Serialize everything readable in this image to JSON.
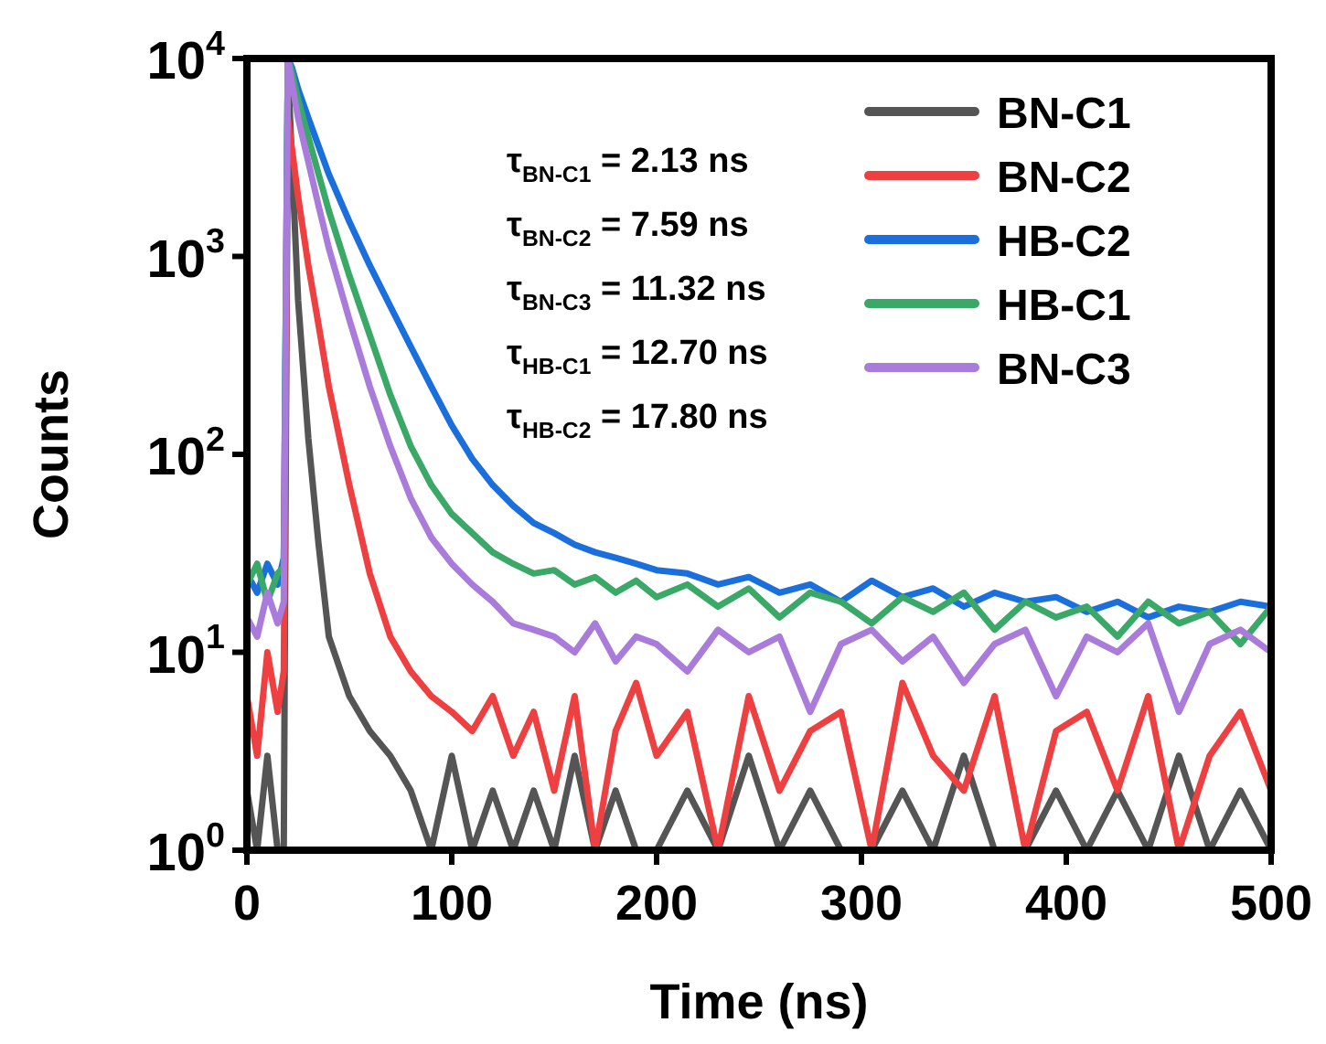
{
  "chart_data": {
    "type": "line",
    "xlabel": "Time (ns)",
    "ylabel": "Counts",
    "log": "y",
    "xlim": [
      0,
      500
    ],
    "xticks": [
      0,
      100,
      200,
      300,
      400,
      500
    ],
    "ylim": [
      1,
      10000
    ],
    "yticks": [
      {
        "value": 1,
        "label": "10$^{0}$"
      },
      {
        "value": 10,
        "label": "10$^{1}$"
      },
      {
        "value": 100,
        "label": "10$^{2}$"
      },
      {
        "value": 1000,
        "label": "10$^{3}$"
      },
      {
        "value": 10000,
        "label": "10$^{4}$"
      }
    ],
    "legend": "top right",
    "grid": false,
    "marker": "none",
    "line_style": "solid",
    "x": [
      0,
      5,
      10,
      15,
      18,
      20,
      22,
      25,
      30,
      35,
      40,
      50,
      60,
      70,
      80,
      90,
      100,
      110,
      120,
      130,
      140,
      150,
      160,
      170,
      180,
      190,
      200,
      215,
      230,
      245,
      260,
      275,
      290,
      305,
      320,
      335,
      350,
      365,
      380,
      395,
      410,
      425,
      440,
      455,
      470,
      485,
      500
    ],
    "series": [
      {
        "name": "BN-C1",
        "color": "#555555",
        "values": [
          2,
          1,
          3,
          1,
          1,
          9000,
          3000,
          600,
          120,
          35,
          12,
          6,
          4,
          3,
          2,
          1,
          3,
          1,
          2,
          1,
          2,
          1,
          3,
          1,
          2,
          1,
          1,
          2,
          1,
          3,
          1,
          2,
          1,
          1,
          2,
          1,
          3,
          1,
          1,
          2,
          1,
          2,
          1,
          3,
          1,
          2,
          1
        ]
      },
      {
        "name": "BN-C2",
        "color": "#ee4040",
        "values": [
          6,
          3,
          10,
          5,
          8,
          5000,
          3500,
          2000,
          900,
          450,
          220,
          70,
          25,
          12,
          8,
          6,
          5,
          4,
          6,
          3,
          5,
          2,
          6,
          1,
          4,
          7,
          3,
          5,
          1,
          6,
          2,
          4,
          5,
          1,
          7,
          3,
          2,
          6,
          1,
          4,
          5,
          2,
          6,
          1,
          3,
          5,
          2
        ]
      },
      {
        "name": "HB-C2",
        "color": "#1a6fdc",
        "values": [
          25,
          20,
          28,
          22,
          30,
          10000,
          9000,
          7000,
          5000,
          3600,
          2600,
          1500,
          900,
          560,
          350,
          220,
          140,
          95,
          70,
          55,
          45,
          40,
          35,
          32,
          30,
          28,
          26,
          25,
          22,
          24,
          20,
          22,
          18,
          23,
          19,
          21,
          17,
          20,
          18,
          19,
          16,
          18,
          15,
          17,
          16,
          18,
          17
        ]
      },
      {
        "name": "HB-C1",
        "color": "#3aa866",
        "values": [
          22,
          28,
          18,
          25,
          27,
          10000,
          8500,
          6200,
          4000,
          2600,
          1700,
          800,
          400,
          200,
          110,
          70,
          50,
          40,
          32,
          28,
          25,
          26,
          22,
          24,
          20,
          23,
          19,
          22,
          17,
          21,
          15,
          20,
          18,
          14,
          19,
          16,
          20,
          13,
          18,
          15,
          17,
          12,
          18,
          14,
          16,
          11,
          17
        ]
      },
      {
        "name": "BN-C3",
        "color": "#a97bdb",
        "values": [
          15,
          12,
          20,
          14,
          18,
          10000,
          7500,
          5000,
          3000,
          1800,
          1100,
          480,
          220,
          110,
          60,
          38,
          28,
          22,
          18,
          14,
          13,
          12,
          10,
          14,
          9,
          12,
          11,
          8,
          13,
          10,
          12,
          5,
          11,
          13,
          9,
          12,
          7,
          11,
          13,
          6,
          12,
          10,
          14,
          5,
          11,
          13,
          10
        ]
      }
    ],
    "annotations": [
      "τ$_{BN-C1}$ = 2.13 ns",
      "τ$_{BN-C2}$ = 7.59 ns",
      "τ$_{BN-C3}$ = 11.32 ns",
      "τ$_{HB-C1}$ = 12.70 ns",
      "τ$_{HB-C2}$ = 17.80 ns"
    ]
  }
}
